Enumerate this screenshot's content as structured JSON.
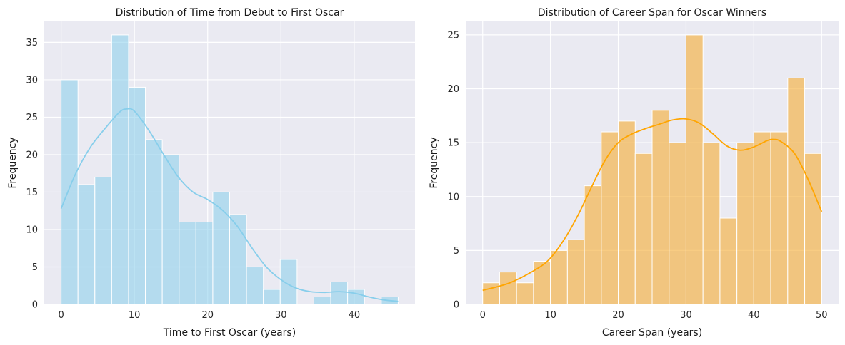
{
  "chart_data": [
    {
      "type": "histogram",
      "title": "Distribution of Time from Debut to First Oscar",
      "xlabel": "Time to First Oscar (years)",
      "ylabel": "Frequency",
      "xlim": [
        -2.3,
        48.3
      ],
      "ylim": [
        0,
        37.8
      ],
      "xticks": [
        0,
        10,
        20,
        30,
        40
      ],
      "yticks": [
        0,
        5,
        10,
        15,
        20,
        25,
        30,
        35
      ],
      "bin_edges": [
        0,
        2.3,
        4.6,
        6.9,
        9.2,
        11.5,
        13.8,
        16.1,
        18.4,
        20.7,
        23.0,
        25.3,
        27.6,
        29.9,
        32.2,
        34.5,
        36.8,
        39.1,
        41.4,
        43.7,
        46.0
      ],
      "values": [
        30,
        16,
        17,
        36,
        29,
        22,
        20,
        11,
        11,
        15,
        12,
        5,
        2,
        6,
        0,
        1,
        3,
        2,
        0,
        1
      ],
      "bar_color": "#87ceeb",
      "kde_color": "#87ceeb",
      "kde": {
        "x": [
          0,
          2,
          4,
          6,
          8,
          9,
          10,
          12,
          14,
          16,
          18,
          20,
          22,
          24,
          26,
          28,
          30,
          32,
          34,
          36,
          38,
          40,
          42,
          44,
          46
        ],
        "y": [
          12.8,
          17.5,
          21.0,
          23.5,
          25.7,
          26.1,
          25.8,
          23.2,
          20.0,
          17.0,
          15.0,
          14.0,
          12.6,
          10.5,
          7.6,
          5.0,
          3.3,
          2.2,
          1.7,
          1.6,
          1.7,
          1.5,
          1.0,
          0.6,
          0.4
        ]
      },
      "background": "#eaeaf2",
      "grid": true
    },
    {
      "type": "histogram",
      "title": "Distribution of Career Span for Oscar Winners",
      "xlabel": "Career Span (years)",
      "ylabel": "Frequency",
      "xlim": [
        -2.5,
        52.5
      ],
      "ylim": [
        0,
        26.25
      ],
      "xticks": [
        0,
        10,
        20,
        30,
        40,
        50
      ],
      "yticks": [
        0,
        5,
        10,
        15,
        20,
        25
      ],
      "bin_edges": [
        0,
        2.5,
        5,
        7.5,
        10,
        12.5,
        15,
        17.5,
        20,
        22.5,
        25,
        27.5,
        30,
        32.5,
        35,
        37.5,
        40,
        42.5,
        45,
        47.5,
        50
      ],
      "values": [
        2,
        3,
        2,
        4,
        5,
        6,
        11,
        16,
        17,
        14,
        18,
        15,
        25,
        15,
        8,
        15,
        16,
        16,
        21,
        14
      ],
      "bar_color": "#f5b041",
      "kde_color": "#ffa500",
      "kde": {
        "x": [
          0,
          4,
          8,
          10,
          12,
          14,
          16,
          18,
          20,
          22,
          24,
          26,
          28,
          30,
          32,
          34,
          36,
          38,
          40,
          42,
          43,
          44,
          46,
          48,
          50
        ],
        "y": [
          1.3,
          2.0,
          3.3,
          4.3,
          6.0,
          8.2,
          10.8,
          13.3,
          15.0,
          15.8,
          16.3,
          16.7,
          17.1,
          17.2,
          16.8,
          15.8,
          14.7,
          14.3,
          14.6,
          15.2,
          15.3,
          15.1,
          14.0,
          11.6,
          8.6
        ]
      },
      "background": "#eaeaf2",
      "grid": true
    }
  ]
}
